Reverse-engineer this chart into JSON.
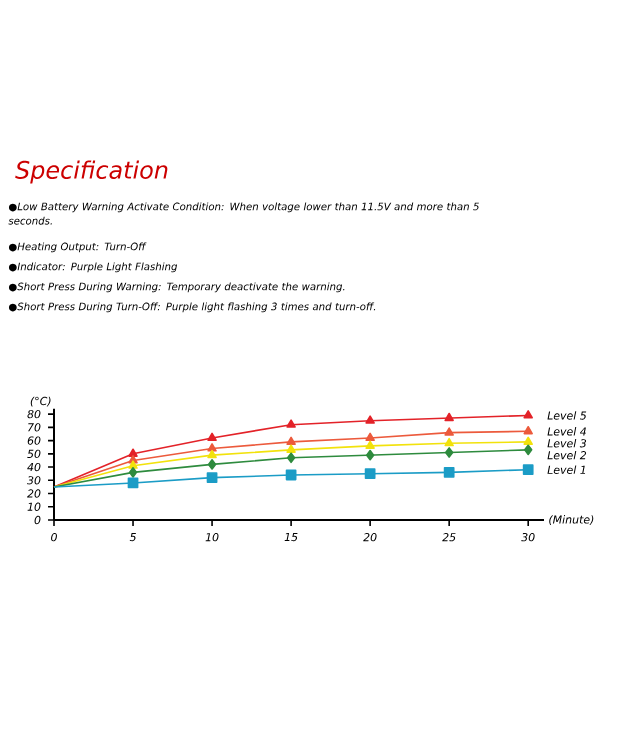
{
  "chart_data": {
    "type": "line",
    "title": "Specification",
    "annotations": [
      "●Low Battery Warning Activate Condition: When voltage lower than 11.5V and more than 5 seconds.",
      "●Heating Output: Turn-Off",
      "●Indicator: Purple Light Flashing",
      "●Short Press During Warning: Temporary deactivate the warning.",
      "●Short Press During Turn-Off: Purple light flashing 3 times and turn-off."
    ],
    "xlabel": "(Minute)",
    "ylabel": "(°C)",
    "x": [
      0,
      5,
      10,
      15,
      20,
      25,
      30
    ],
    "xlim": [
      0,
      31
    ],
    "ylim": [
      0,
      84
    ],
    "xticks": [
      0,
      5,
      10,
      15,
      20,
      25,
      30
    ],
    "yticks": [
      0,
      10,
      20,
      30,
      40,
      50,
      60,
      70,
      80
    ],
    "series": [
      {
        "name": "Level 5",
        "color": "#e32228",
        "marker": "triangle",
        "values": [
          25,
          50,
          62,
          72,
          75,
          77,
          79
        ]
      },
      {
        "name": "Level 4",
        "color": "#ec5a3c",
        "marker": "triangle",
        "values": [
          25,
          45,
          54,
          59,
          62,
          66,
          67
        ]
      },
      {
        "name": "Level 3",
        "color": "#f2e20c",
        "marker": "triangle",
        "values": [
          25,
          41,
          49,
          53,
          56,
          58,
          59
        ]
      },
      {
        "name": "Level 2",
        "color": "#2e8b3e",
        "marker": "diamond",
        "values": [
          25,
          36,
          42,
          47,
          49,
          51,
          53
        ]
      },
      {
        "name": "Level 1",
        "color": "#1b9cc6",
        "marker": "square",
        "values": [
          25,
          28,
          32,
          34,
          35,
          36,
          38
        ]
      }
    ]
  }
}
